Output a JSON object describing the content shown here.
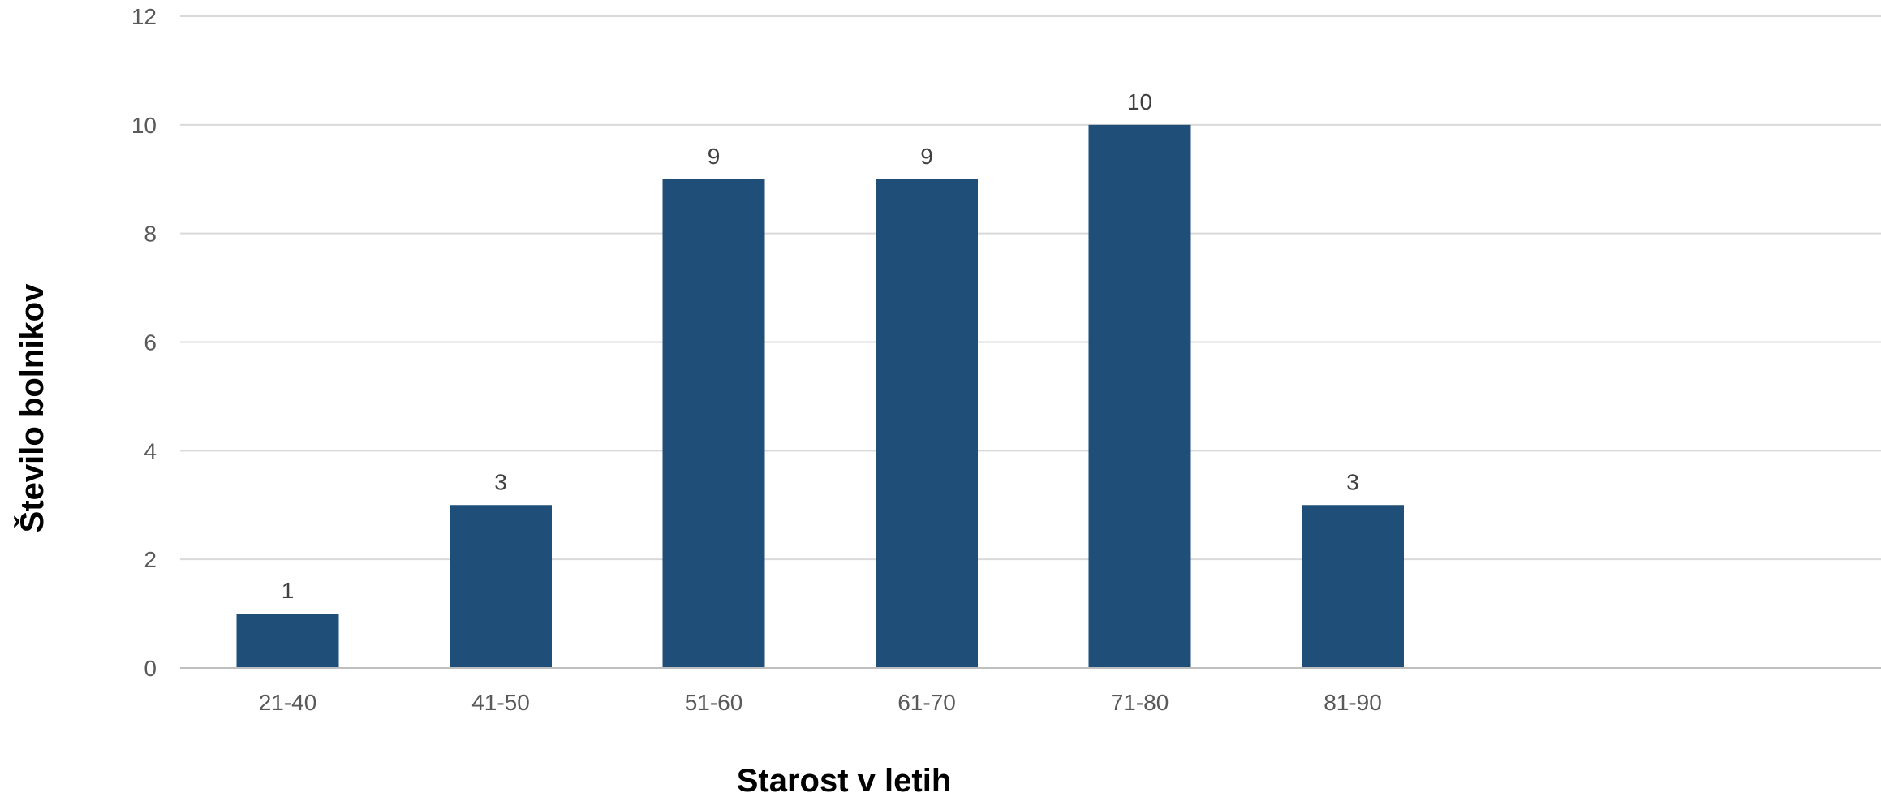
{
  "chart_data": {
    "type": "bar",
    "categories": [
      "21-40",
      "41-50",
      "51-60",
      "61-70",
      "71-80",
      "81-90"
    ],
    "values": [
      1,
      3,
      9,
      9,
      10,
      3
    ],
    "data_labels": [
      "1",
      "3",
      "9",
      "9",
      "10",
      "3"
    ],
    "title": "",
    "xlabel": "Starost v letih",
    "ylabel": "Število bolnikov",
    "ylim": [
      0,
      12
    ],
    "yticks": [
      0,
      2,
      4,
      6,
      8,
      10,
      12
    ],
    "ytick_labels": [
      "0",
      "2",
      "4",
      "6",
      "8",
      "10",
      "12"
    ],
    "grid": true,
    "legend": "none",
    "colors": {
      "bar": "#1F4E79",
      "grid": "#D9D9D9",
      "axis": "#BFBFBF"
    }
  }
}
